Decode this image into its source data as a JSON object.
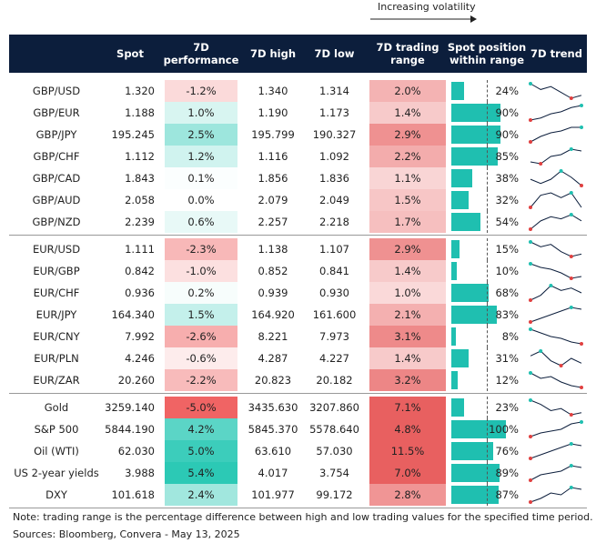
{
  "header": {
    "legend": "Increasing volatility",
    "columns": [
      "Spot",
      "7D performance",
      "7D high",
      "7D low",
      "7D trading range",
      "Spot position within range",
      "7D trend"
    ]
  },
  "groups": [
    [
      {
        "cells": [
          "GBP/USD",
          "1.320",
          "-1.2%",
          "1.340",
          "1.314",
          "2.0%",
          "24%"
        ],
        "trend": [
          8,
          6,
          7,
          5,
          3,
          4
        ]
      },
      {
        "cells": [
          "GBP/EUR",
          "1.188",
          "1.0%",
          "1.190",
          "1.173",
          "1.4%",
          "90%"
        ],
        "trend": [
          2,
          3,
          5,
          6,
          8,
          9
        ]
      },
      {
        "cells": [
          "GBP/JPY",
          "195.245",
          "2.5%",
          "195.799",
          "190.327",
          "2.9%",
          "90%"
        ],
        "trend": [
          1,
          4,
          6,
          7,
          9,
          9
        ]
      },
      {
        "cells": [
          "GBP/CHF",
          "1.112",
          "1.2%",
          "1.116",
          "1.092",
          "2.2%",
          "85%"
        ],
        "trend": [
          2,
          1,
          5,
          6,
          9,
          8
        ]
      },
      {
        "cells": [
          "GBP/CAD",
          "1.843",
          "0.1%",
          "1.856",
          "1.836",
          "1.1%",
          "38%"
        ],
        "trend": [
          5,
          3,
          5,
          9,
          6,
          2
        ]
      },
      {
        "cells": [
          "GBP/AUD",
          "2.058",
          "0.0%",
          "2.079",
          "2.049",
          "1.5%",
          "32%"
        ],
        "trend": [
          2,
          7,
          8,
          6,
          8,
          2
        ]
      },
      {
        "cells": [
          "GBP/NZD",
          "2.239",
          "0.6%",
          "2.257",
          "2.218",
          "1.7%",
          "54%"
        ],
        "trend": [
          1,
          5,
          7,
          6,
          8,
          5
        ]
      }
    ],
    [
      {
        "cells": [
          "EUR/USD",
          "1.111",
          "-2.3%",
          "1.138",
          "1.107",
          "2.9%",
          "15%"
        ],
        "trend": [
          9,
          7,
          8,
          5,
          3,
          4
        ]
      },
      {
        "cells": [
          "EUR/GBP",
          "0.842",
          "-1.0%",
          "0.852",
          "0.841",
          "1.4%",
          "10%"
        ],
        "trend": [
          9,
          7,
          6,
          4,
          1,
          2
        ]
      },
      {
        "cells": [
          "EUR/CHF",
          "0.936",
          "0.2%",
          "0.939",
          "0.930",
          "1.0%",
          "68%"
        ],
        "trend": [
          2,
          4,
          8,
          6,
          7,
          5
        ]
      },
      {
        "cells": [
          "EUR/JPY",
          "164.340",
          "1.5%",
          "164.920",
          "161.600",
          "2.1%",
          "83%"
        ],
        "trend": [
          1,
          3,
          5,
          7,
          9,
          8
        ]
      },
      {
        "cells": [
          "EUR/CNY",
          "7.992",
          "-2.6%",
          "8.221",
          "7.973",
          "3.1%",
          "8%"
        ],
        "trend": [
          9,
          7,
          5,
          4,
          2,
          1
        ]
      },
      {
        "cells": [
          "EUR/PLN",
          "4.246",
          "-0.6%",
          "4.287",
          "4.227",
          "1.4%",
          "31%"
        ],
        "trend": [
          6,
          8,
          4,
          2,
          5,
          3
        ]
      },
      {
        "cells": [
          "EUR/ZAR",
          "20.260",
          "-2.2%",
          "20.823",
          "20.182",
          "3.2%",
          "12%"
        ],
        "trend": [
          9,
          6,
          7,
          4,
          2,
          1
        ]
      }
    ],
    [
      {
        "cells": [
          "Gold",
          "3259.140",
          "-5.0%",
          "3435.630",
          "3207.860",
          "7.1%",
          "23%"
        ],
        "trend": [
          9,
          7,
          4,
          5,
          2,
          3
        ]
      },
      {
        "cells": [
          "S&P 500",
          "5844.190",
          "4.2%",
          "5845.370",
          "5578.640",
          "4.8%",
          "100%"
        ],
        "trend": [
          1,
          3,
          4,
          5,
          8,
          9
        ]
      },
      {
        "cells": [
          "Oil (WTI)",
          "62.030",
          "5.0%",
          "63.610",
          "57.030",
          "11.5%",
          "76%"
        ],
        "trend": [
          1,
          3,
          5,
          7,
          9,
          8
        ]
      },
      {
        "cells": [
          "US 2-year yields",
          "3.988",
          "5.4%",
          "4.017",
          "3.754",
          "7.0%",
          "89%"
        ],
        "trend": [
          1,
          4,
          5,
          6,
          9,
          8
        ]
      },
      {
        "cells": [
          "DXY",
          "101.618",
          "2.4%",
          "101.977",
          "99.172",
          "2.8%",
          "87%"
        ],
        "trend": [
          1,
          3,
          6,
          5,
          9,
          8
        ]
      }
    ]
  ],
  "note": "Note: trading range is the percentage difference between high and low trading values for the specified time period.",
  "sources": "Sources: Bloomberg, Convera - May 13, 2025"
}
